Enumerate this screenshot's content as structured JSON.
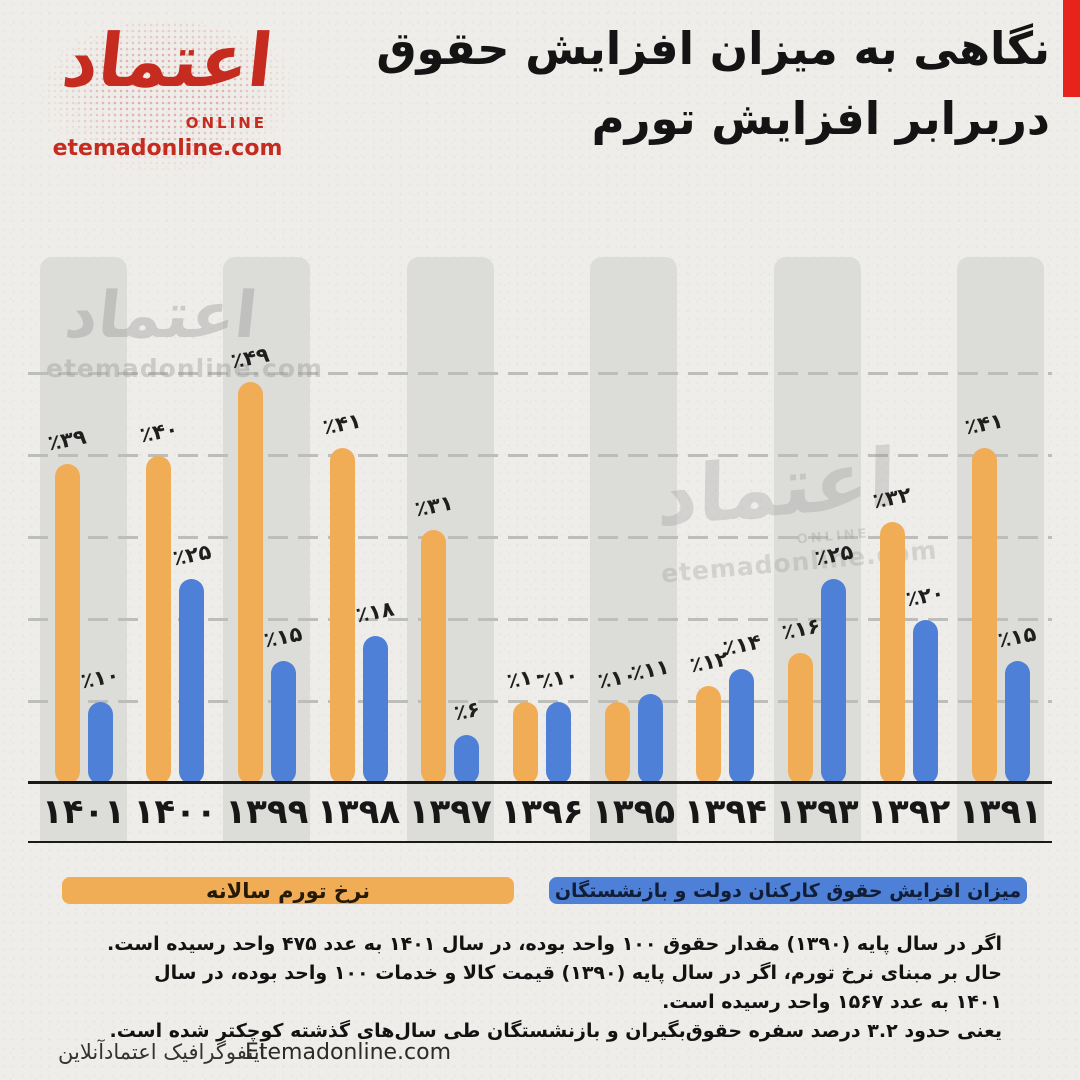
{
  "header": {
    "logo": {
      "brand_calligraphy": "اعتماد",
      "online_label": "ONLINE",
      "site_label": "etemadonline.com",
      "brand_color": "#c62b1f"
    },
    "title_line1": "نگاهی به میزان افزایش حقوق",
    "title_line2": "دربرابر افزایش تورم",
    "accent_color": "#e8231b"
  },
  "chart_data": {
    "type": "bar",
    "direction": "rtl",
    "title": "نگاهی به میزان افزایش حقوق دربرابر افزایش تورم",
    "unit": "%",
    "ylim": [
      0,
      60
    ],
    "grid": "dashed-horizontal",
    "gridlines_percent": [
      10,
      20,
      30,
      40,
      50
    ],
    "legend_position": "bottom",
    "categories": [
      "۱۴۰۱",
      "۱۴۰۰",
      "۱۳۹۹",
      "۱۳۹۸",
      "۱۳۹۷",
      "۱۳۹۶",
      "۱۳۹۵",
      "۱۳۹۴",
      "۱۳۹۳",
      "۱۳۹۲",
      "۱۳۹۱"
    ],
    "categories_latin": [
      1401,
      1400,
      1399,
      1398,
      1397,
      1396,
      1395,
      1394,
      1393,
      1392,
      1391
    ],
    "series": [
      {
        "name": "نرخ تورم سالانه",
        "color": "#f0ad55",
        "values": [
          39,
          40,
          49,
          41,
          31,
          10,
          10,
          12,
          16,
          32,
          41
        ],
        "labels": [
          "٪۳۹",
          "٪۴۰",
          "٪۴۹",
          "٪۴۱",
          "٪۳۱",
          "٪۱۰",
          "٪۱۰",
          "٪۱۲",
          "٪۱۶",
          "٪۳۲",
          "٪۴۱"
        ]
      },
      {
        "name": "میزان افزایش حقوق کارکنان دولت و بازنشستگان",
        "color": "#4d80d6",
        "values": [
          10,
          25,
          15,
          18,
          6,
          10,
          11,
          14,
          25,
          20,
          15
        ],
        "labels": [
          "٪۱۰",
          "٪۲۵",
          "٪۱۵",
          "٪۱۸",
          "٪۶",
          "٪۱۰",
          "٪۱۱",
          "٪۱۴",
          "٪۲۵",
          "٪۲۰",
          "٪۱۵"
        ]
      }
    ],
    "striped_groups": [
      0,
      2,
      4,
      6,
      8,
      10
    ],
    "stripe_color": "#dcdcd9"
  },
  "legend": {
    "inflation": {
      "label": "نرخ تورم سالانه",
      "color": "#f0ad55"
    },
    "salary": {
      "label": "میزان افزایش حقوق کارکنان دولت و بازنشستگان",
      "color": "#4d80d6"
    }
  },
  "watermark": {
    "brand": "اعتماد",
    "online_label": "ONLINE",
    "site": "etemadonline.com"
  },
  "notes": {
    "line1": "اگر در سال پایه (۱۳۹۰) مقدار حقوق ۱۰۰ واحد بوده، در سال ۱۴۰۱ به عدد ۴۷۵ واحد رسیده است.",
    "line2": "حال بر مبنای نرخ تورم، اگر در سال پایه (۱۳۹۰) قیمت کالا و خدمات ۱۰۰ واحد بوده، در سال ۱۴۰۱ به عدد ۱۵۶۷ واحد رسیده است.",
    "line3": "یعنی حدود ۳.۲ درصد سفره حقوق‌بگیران و بازنشستگان طی سال‌های گذشته کوچکتر شده است."
  },
  "footer": {
    "credit": "اینفوگرافیک اعتمادآنلاین",
    "site": "Etemadonline.com"
  }
}
